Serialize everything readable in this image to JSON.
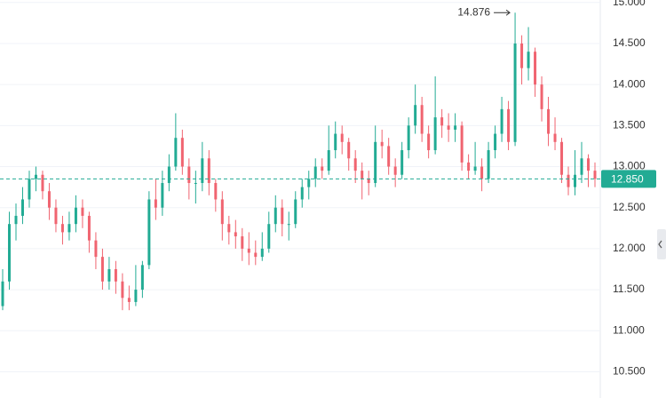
{
  "chart_data": {
    "type": "candlestick",
    "up_color": "#22ab94",
    "down_color": "#f06470",
    "ylim": [
      10.18,
      15.03
    ],
    "yticks": [
      {
        "value": 10.5,
        "label": "10.500"
      },
      {
        "value": 11,
        "label": "11.000"
      },
      {
        "value": 11.5,
        "label": "11.500"
      },
      {
        "value": 12,
        "label": "12.000"
      },
      {
        "value": 12.5,
        "label": "12.500"
      },
      {
        "value": 13,
        "label": "13.000"
      },
      {
        "value": 13.5,
        "label": "13.500"
      },
      {
        "value": 14,
        "label": "14.000"
      },
      {
        "value": 14.5,
        "label": "14.500"
      },
      {
        "value": 15,
        "label": "15.000"
      }
    ],
    "grid": true,
    "last_price": {
      "value": 12.85,
      "label": "12.850"
    },
    "high_marker": 77,
    "ohlc": [
      [
        11.3,
        11.75,
        11.25,
        11.6
      ],
      [
        11.6,
        12.45,
        11.5,
        12.3
      ],
      [
        12.3,
        12.55,
        12.1,
        12.4
      ],
      [
        12.4,
        12.75,
        12.3,
        12.6
      ],
      [
        12.6,
        12.95,
        12.5,
        12.85
      ],
      [
        12.85,
        13.0,
        12.7,
        12.9
      ],
      [
        12.9,
        12.95,
        12.6,
        12.7
      ],
      [
        12.7,
        12.8,
        12.35,
        12.5
      ],
      [
        12.5,
        12.6,
        12.2,
        12.3
      ],
      [
        12.3,
        12.4,
        12.05,
        12.2
      ],
      [
        12.2,
        12.45,
        12.1,
        12.3
      ],
      [
        12.3,
        12.65,
        12.2,
        12.5
      ],
      [
        12.5,
        12.6,
        12.25,
        12.4
      ],
      [
        12.4,
        12.45,
        11.95,
        12.1
      ],
      [
        12.1,
        12.2,
        11.75,
        11.9
      ],
      [
        11.9,
        12.0,
        11.5,
        11.6
      ],
      [
        11.6,
        11.9,
        11.5,
        11.75
      ],
      [
        11.75,
        11.85,
        11.45,
        11.6
      ],
      [
        11.6,
        11.7,
        11.25,
        11.4
      ],
      [
        11.4,
        11.55,
        11.25,
        11.35
      ],
      [
        11.35,
        11.8,
        11.3,
        11.5
      ],
      [
        11.5,
        11.85,
        11.4,
        11.8
      ],
      [
        11.8,
        12.7,
        11.75,
        12.6
      ],
      [
        12.6,
        12.85,
        12.35,
        12.5
      ],
      [
        12.5,
        12.95,
        12.4,
        12.8
      ],
      [
        12.8,
        13.15,
        12.7,
        13.0
      ],
      [
        13.0,
        13.65,
        12.95,
        13.35
      ],
      [
        13.35,
        13.45,
        12.9,
        13.0
      ],
      [
        13.0,
        13.1,
        12.6,
        12.8
      ],
      [
        12.8,
        12.95,
        12.55,
        12.8
      ],
      [
        12.8,
        13.3,
        12.7,
        13.1
      ],
      [
        13.1,
        13.2,
        12.65,
        12.8
      ],
      [
        12.8,
        12.85,
        12.45,
        12.6
      ],
      [
        12.6,
        12.7,
        12.1,
        12.3
      ],
      [
        12.3,
        12.4,
        12.05,
        12.2
      ],
      [
        12.2,
        12.35,
        12.0,
        12.15
      ],
      [
        12.15,
        12.25,
        11.85,
        12.0
      ],
      [
        12.0,
        12.2,
        11.8,
        11.95
      ],
      [
        11.95,
        12.1,
        11.8,
        11.9
      ],
      [
        11.9,
        12.2,
        11.85,
        12.0
      ],
      [
        12.0,
        12.45,
        11.95,
        12.3
      ],
      [
        12.3,
        12.65,
        12.2,
        12.5
      ],
      [
        12.5,
        12.6,
        12.15,
        12.3
      ],
      [
        12.3,
        12.45,
        12.1,
        12.3
      ],
      [
        12.3,
        12.7,
        12.25,
        12.6
      ],
      [
        12.6,
        12.85,
        12.5,
        12.75
      ],
      [
        12.75,
        12.95,
        12.6,
        12.85
      ],
      [
        12.85,
        13.1,
        12.75,
        13.0
      ],
      [
        13.0,
        13.1,
        12.85,
        12.95
      ],
      [
        12.95,
        13.5,
        12.9,
        13.2
      ],
      [
        13.2,
        13.55,
        13.1,
        13.4
      ],
      [
        13.4,
        13.5,
        13.15,
        13.3
      ],
      [
        13.3,
        13.35,
        12.95,
        13.1
      ],
      [
        13.1,
        13.2,
        12.8,
        12.95
      ],
      [
        12.95,
        13.05,
        12.6,
        12.85
      ],
      [
        12.85,
        12.95,
        12.65,
        12.8
      ],
      [
        12.8,
        13.5,
        12.75,
        13.3
      ],
      [
        13.3,
        13.45,
        13.1,
        13.25
      ],
      [
        13.25,
        13.35,
        12.9,
        13.0
      ],
      [
        13.0,
        13.1,
        12.75,
        12.9
      ],
      [
        12.9,
        13.3,
        12.85,
        13.2
      ],
      [
        13.2,
        13.6,
        13.1,
        13.5
      ],
      [
        13.5,
        14.0,
        13.4,
        13.75
      ],
      [
        13.75,
        13.85,
        13.3,
        13.4
      ],
      [
        13.4,
        13.5,
        13.1,
        13.2
      ],
      [
        13.2,
        14.1,
        13.15,
        13.6
      ],
      [
        13.6,
        13.7,
        13.35,
        13.5
      ],
      [
        13.5,
        13.65,
        13.3,
        13.45
      ],
      [
        13.45,
        13.65,
        13.3,
        13.5
      ],
      [
        13.5,
        13.55,
        12.95,
        13.05
      ],
      [
        13.05,
        13.15,
        12.85,
        12.95
      ],
      [
        12.95,
        13.3,
        12.9,
        13.0
      ],
      [
        13.0,
        13.1,
        12.7,
        12.85
      ],
      [
        12.85,
        13.3,
        12.8,
        13.2
      ],
      [
        13.2,
        13.5,
        13.1,
        13.4
      ],
      [
        13.4,
        13.85,
        13.3,
        13.7
      ],
      [
        13.7,
        13.8,
        13.2,
        13.3
      ],
      [
        13.3,
        14.876,
        13.25,
        14.5
      ],
      [
        14.5,
        14.6,
        14.0,
        14.2
      ],
      [
        14.2,
        14.7,
        14.05,
        14.4
      ],
      [
        14.4,
        14.45,
        13.85,
        14.0
      ],
      [
        14.0,
        14.1,
        13.55,
        13.7
      ],
      [
        13.7,
        13.85,
        13.25,
        13.4
      ],
      [
        13.4,
        13.6,
        13.2,
        13.3
      ],
      [
        13.3,
        13.35,
        12.8,
        12.9
      ],
      [
        12.9,
        13.0,
        12.65,
        12.75
      ],
      [
        12.75,
        13.2,
        12.65,
        12.9
      ],
      [
        12.9,
        13.3,
        12.8,
        13.1
      ],
      [
        13.1,
        13.15,
        12.75,
        12.95
      ],
      [
        12.95,
        13.05,
        12.75,
        12.85
      ]
    ]
  }
}
